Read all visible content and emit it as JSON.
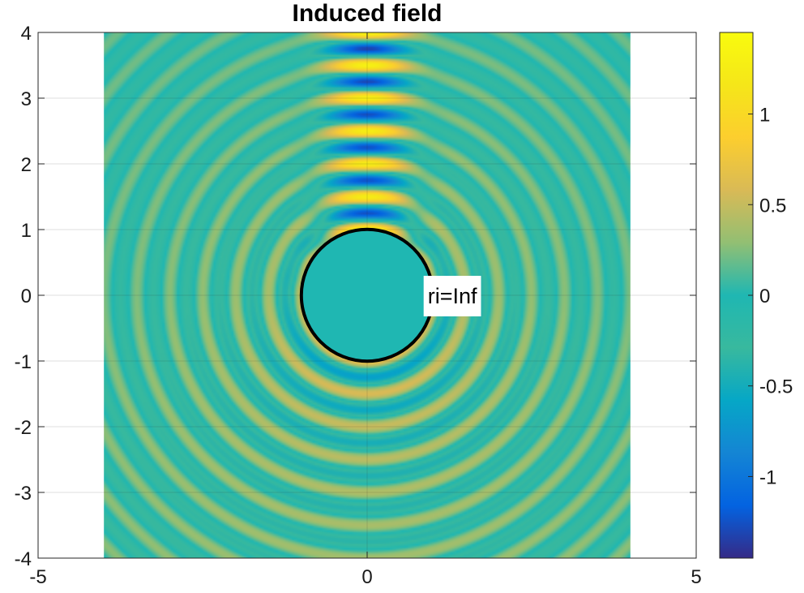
{
  "chart_data": {
    "type": "heatmap",
    "title": "Induced field",
    "xlim": [
      -5,
      5
    ],
    "ylim": [
      -4,
      4
    ],
    "x_ticks": [
      -5,
      0,
      5
    ],
    "y_ticks": [
      -4,
      -3,
      -2,
      -1,
      0,
      1,
      2,
      3,
      4
    ],
    "x_tick_labels": [
      "-5",
      "0",
      "5"
    ],
    "y_tick_labels": [
      "-4",
      "-3",
      "-2",
      "-1",
      "0",
      "1",
      "2",
      "3",
      "4"
    ],
    "data_extent": {
      "x": [
        -4,
        4
      ],
      "y": [
        -4,
        4
      ]
    },
    "grid": true,
    "colormap": "parula",
    "colorbar": {
      "limits": [
        -1.45,
        1.45
      ],
      "ticks": [
        -1,
        -0.5,
        0,
        0.5,
        1
      ],
      "tick_labels": [
        "-1",
        "-0.5",
        "0",
        "0.5",
        "1"
      ]
    },
    "scatterer": {
      "shape": "circle",
      "center": [
        0,
        0
      ],
      "radius": 1
    },
    "annotation": {
      "text": "ri=Inf",
      "x": 0.92,
      "y": 0
    },
    "colors": {
      "parula_low": "#352a87",
      "parula_mid": "#1fb7b2",
      "parula_high": "#f9fb0e",
      "circle_edge": "#000000"
    }
  }
}
